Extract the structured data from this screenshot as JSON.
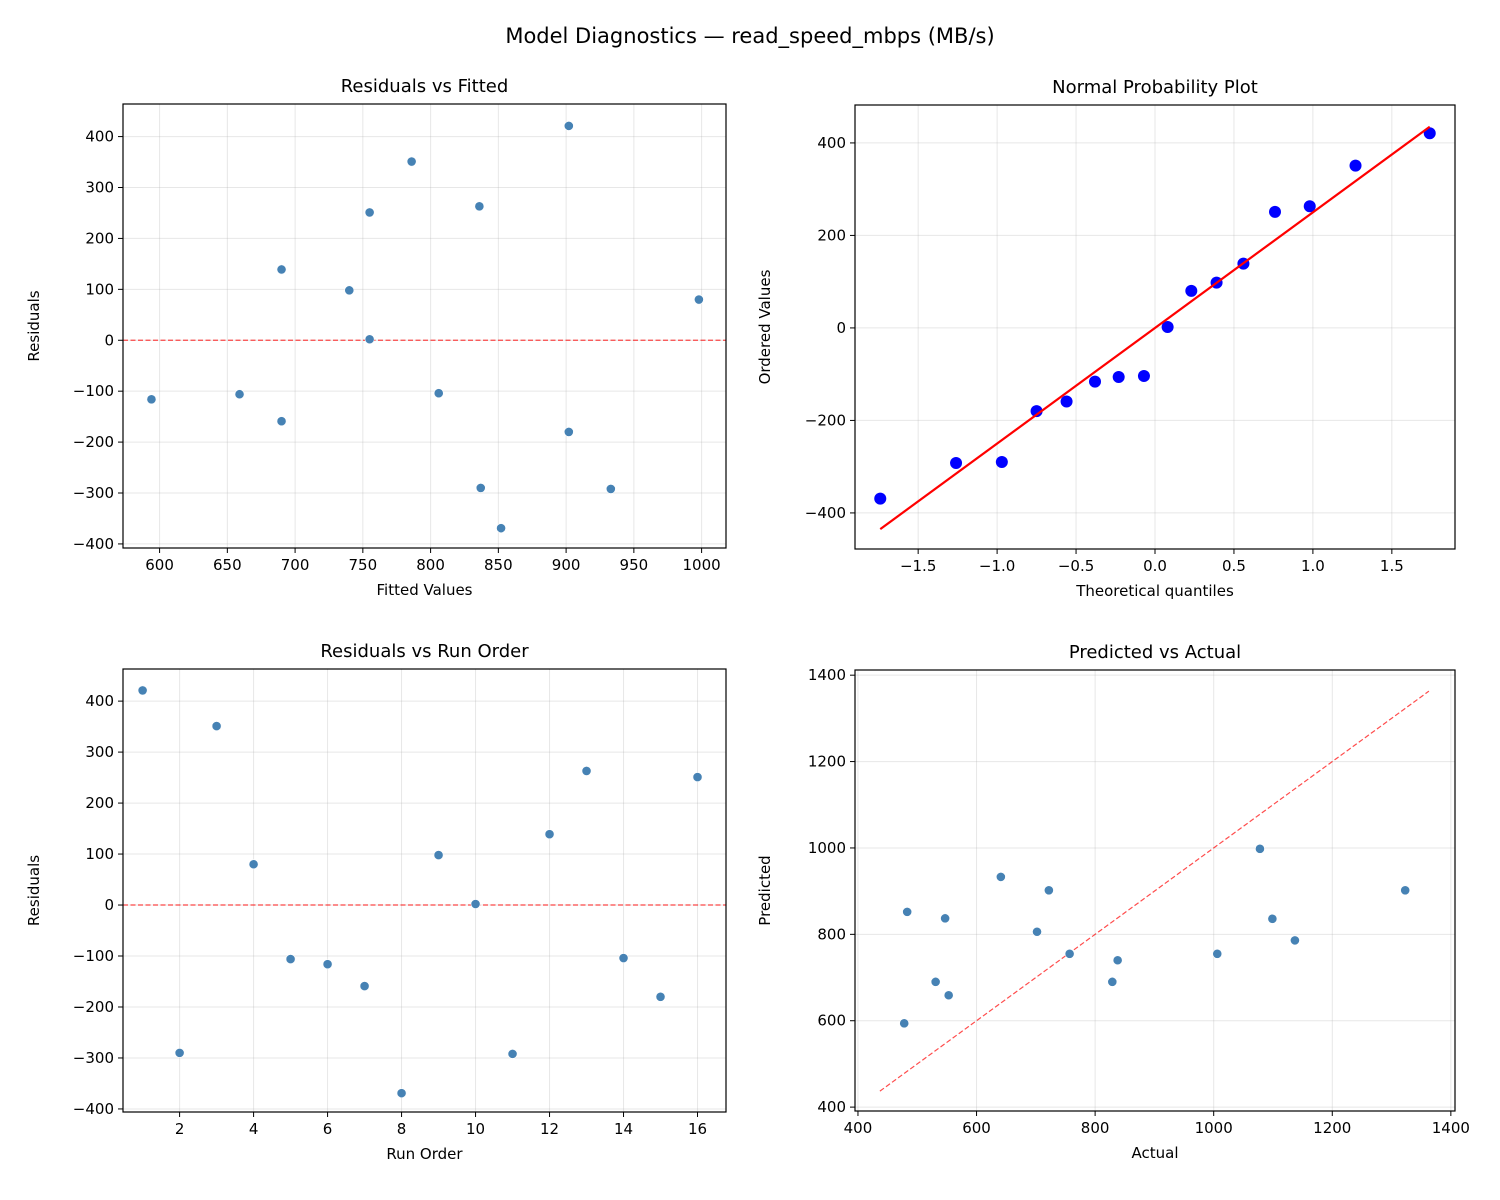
{
  "suptitle": "Model Diagnostics — read_speed_mbps (MB/s)",
  "colors": {
    "points": "#4682b4",
    "npp_points": "#0000ff",
    "line": "#ff0000",
    "grid": "#b0b0b0"
  },
  "chart_data": [
    {
      "id": "resid-fitted",
      "type": "scatter",
      "title": "Residuals vs Fitted",
      "xlabel": "Fitted Values",
      "ylabel": "Residuals",
      "xlim": [
        573,
        1018
      ],
      "ylim": [
        -408,
        464
      ],
      "xticks": [
        600,
        650,
        700,
        750,
        800,
        850,
        900,
        950,
        1000
      ],
      "yticks": [
        -400,
        -300,
        -200,
        -100,
        0,
        100,
        200,
        300,
        400
      ],
      "grid": true,
      "hline": {
        "y": 0,
        "style": "dashed"
      },
      "x": [
        902,
        837,
        786,
        998,
        659,
        594,
        690,
        852,
        740,
        755,
        933,
        690,
        836,
        806,
        902,
        755
      ],
      "y": [
        421,
        -290,
        351,
        80,
        -106,
        -116,
        -159,
        -369,
        98,
        2,
        -292,
        139,
        263,
        -104,
        -180,
        251
      ]
    },
    {
      "id": "normal-prob",
      "type": "scatter",
      "title": "Normal Probability Plot",
      "xlabel": "Theoretical quantiles",
      "ylabel": "Ordered Values",
      "xlim": [
        -1.9,
        1.9
      ],
      "ylim": [
        -478,
        482
      ],
      "xticks": [
        -1.5,
        -1.0,
        -0.5,
        0.0,
        0.5,
        1.0,
        1.5
      ],
      "yticks": [
        -400,
        -200,
        0,
        200,
        400
      ],
      "grid": true,
      "x": [
        -1.74,
        -1.26,
        -0.97,
        -0.75,
        -0.56,
        -0.38,
        -0.23,
        -0.07,
        0.08,
        0.23,
        0.39,
        0.56,
        0.76,
        0.98,
        1.27,
        1.74
      ],
      "y": [
        -369,
        -292,
        -290,
        -180,
        -159,
        -116,
        -106,
        -104,
        2,
        80,
        98,
        139,
        251,
        263,
        351,
        421
      ],
      "fit_line": {
        "x": [
          -1.74,
          1.74
        ],
        "y": [
          -435,
          435
        ]
      }
    },
    {
      "id": "resid-order",
      "type": "scatter",
      "title": "Residuals vs Run Order",
      "xlabel": "Run Order",
      "ylabel": "Residuals",
      "xlim": [
        0.47,
        16.77
      ],
      "ylim": [
        -406,
        463
      ],
      "xticks": [
        2,
        4,
        6,
        8,
        10,
        12,
        14,
        16
      ],
      "yticks": [
        -400,
        -300,
        -200,
        -100,
        0,
        100,
        200,
        300,
        400
      ],
      "grid": true,
      "hline": {
        "y": 0,
        "style": "dashed"
      },
      "x": [
        1,
        2,
        3,
        4,
        5,
        6,
        7,
        8,
        9,
        10,
        11,
        12,
        13,
        14,
        15,
        16
      ],
      "y": [
        421,
        -290,
        351,
        80,
        -106,
        -116,
        -159,
        -369,
        98,
        2,
        -292,
        139,
        263,
        -104,
        -180,
        251
      ]
    },
    {
      "id": "pred-actual",
      "type": "scatter",
      "title": "Predicted vs Actual",
      "xlabel": "Actual",
      "ylabel": "Predicted",
      "xlim": [
        395,
        1407
      ],
      "ylim": [
        391,
        1412
      ],
      "xticks": [
        400,
        600,
        800,
        1000,
        1200,
        1400
      ],
      "yticks": [
        400,
        600,
        800,
        1000,
        1200,
        1400
      ],
      "grid": true,
      "identity_line": {
        "x": [
          437,
          1363
        ],
        "y": [
          437,
          1363
        ],
        "style": "dashed"
      },
      "x": [
        1323,
        547,
        1137,
        1078,
        553,
        478,
        531,
        483,
        838,
        757,
        641,
        829,
        1099,
        702,
        722,
        1006
      ],
      "y": [
        902,
        837,
        786,
        998,
        659,
        594,
        690,
        852,
        740,
        755,
        933,
        690,
        836,
        806,
        902,
        755
      ]
    }
  ]
}
